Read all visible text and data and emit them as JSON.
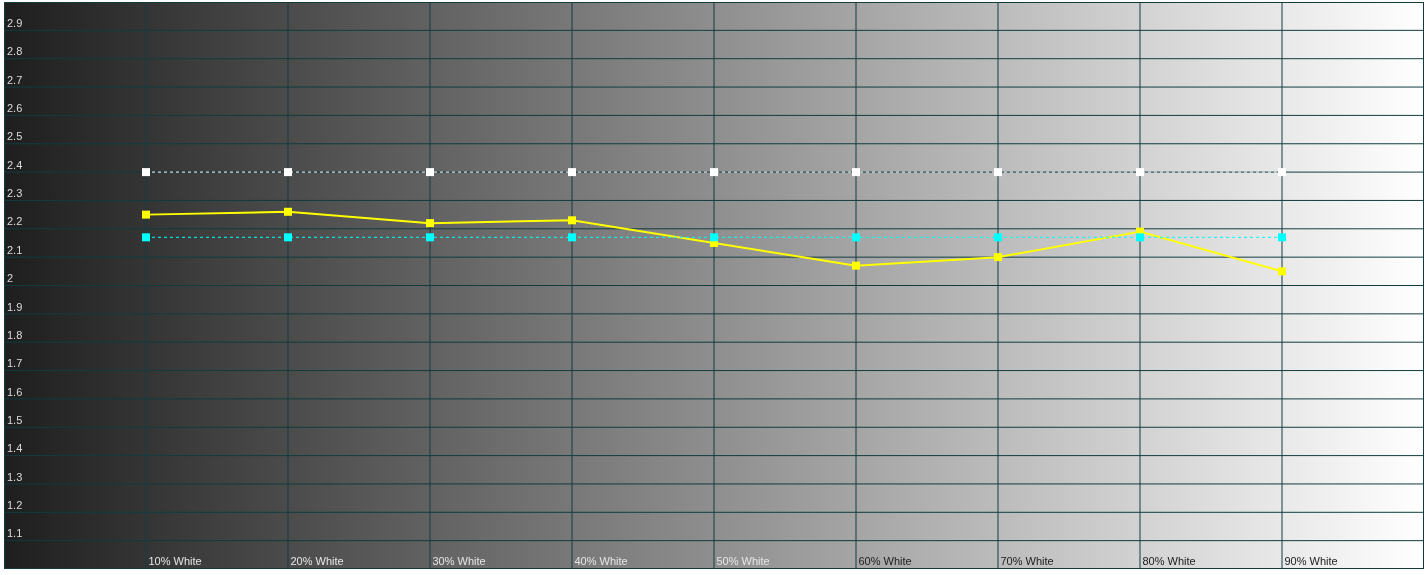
{
  "chart_data": {
    "type": "line",
    "categories": [
      "10% White",
      "20% White",
      "30% White",
      "40% White",
      "50% White",
      "60% White",
      "70% White",
      "80% White",
      "90% White"
    ],
    "series": [
      {
        "color": "#ffffff",
        "line_style": "dashed",
        "values": [
          2.4,
          2.4,
          2.4,
          2.4,
          2.4,
          2.4,
          2.4,
          2.4,
          2.4
        ]
      },
      {
        "color": "#ffff00",
        "values": [
          2.25,
          2.26,
          2.22,
          2.23,
          2.15,
          2.07,
          2.1,
          2.19,
          2.05
        ]
      },
      {
        "color": "#00ffff",
        "line_style": "dashed",
        "values": [
          2.17,
          2.17,
          2.17,
          2.17,
          2.17,
          2.17,
          2.17,
          2.17,
          2.17
        ]
      }
    ],
    "ylim": [
      1.0,
      3.0
    ],
    "yticks": [
      1.1,
      1.2,
      1.3,
      1.4,
      1.5,
      1.6,
      1.7,
      1.8,
      1.9,
      2,
      2.1,
      2.2,
      2.3,
      2.4,
      2.5,
      2.6,
      2.7,
      2.8,
      2.9
    ],
    "grid": true,
    "marker": "square",
    "line_style": "solid"
  }
}
